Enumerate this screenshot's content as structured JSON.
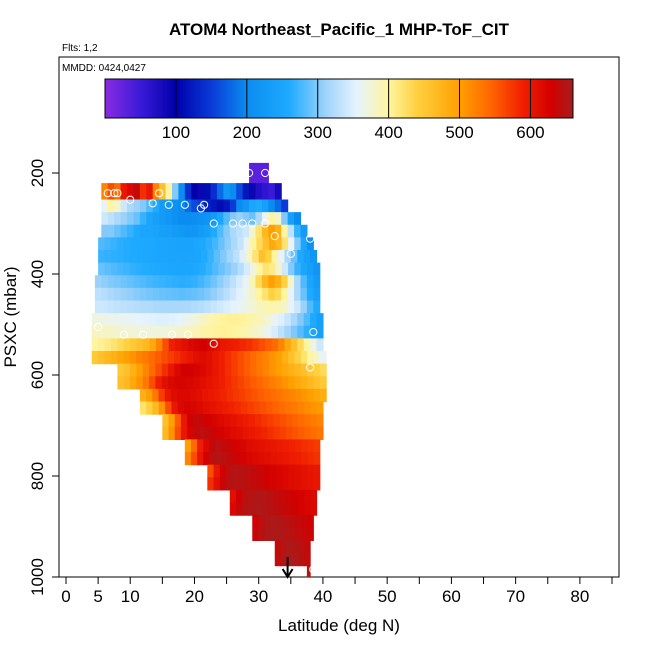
{
  "chart_data": {
    "type": "heatmap",
    "title": "ATOM4 Northeast_Pacific_1 MHP-ToF_CIT",
    "flights_label": "Flts: 1,2",
    "dates_label": "MMDD: 0424,0427",
    "xlabel": "Latitude (deg N)",
    "ylabel": "PSXC (mbar)",
    "xlim": [
      0,
      85
    ],
    "ylim": [
      1000,
      0
    ],
    "x_ticks_major": [
      0,
      10,
      20,
      30,
      40,
      50,
      60,
      70,
      80
    ],
    "x_tick_labels_major": [
      "0",
      "10",
      "20",
      "30",
      "40",
      "50",
      "60",
      "70",
      "80"
    ],
    "x_ticks_minor": [
      5,
      15,
      25,
      35,
      45,
      55,
      65,
      75,
      85
    ],
    "x_tick_labels_minor": [
      "5",
      "",
      "",
      "",
      "",
      "",
      "",
      "",
      ""
    ],
    "y_ticks": [
      200,
      400,
      600,
      800,
      1000
    ],
    "y_tick_labels": [
      "200",
      "400",
      "600",
      "800",
      "1000"
    ],
    "colorbar": {
      "min": 0,
      "max": 660,
      "ticks": [
        100,
        200,
        300,
        400,
        500,
        600
      ],
      "tick_labels": [
        "100",
        "200",
        "300",
        "400",
        "500",
        "600"
      ],
      "stops": [
        {
          "v": 0,
          "c": "#8a2be2"
        },
        {
          "v": 50,
          "c": "#3a1ad8"
        },
        {
          "v": 100,
          "c": "#0000aa"
        },
        {
          "v": 150,
          "c": "#0a3ad8"
        },
        {
          "v": 200,
          "c": "#0a8cf0"
        },
        {
          "v": 260,
          "c": "#1eaaff"
        },
        {
          "v": 310,
          "c": "#9cd2fa"
        },
        {
          "v": 355,
          "c": "#e6f3ff"
        },
        {
          "v": 400,
          "c": "#fff5a0"
        },
        {
          "v": 440,
          "c": "#ffd040"
        },
        {
          "v": 500,
          "c": "#ffa000"
        },
        {
          "v": 545,
          "c": "#ff6400"
        },
        {
          "v": 590,
          "c": "#f01e00"
        },
        {
          "v": 630,
          "c": "#d20000"
        },
        {
          "v": 660,
          "c": "#a51e1e"
        }
      ]
    },
    "layers": [
      {
        "p": 200,
        "lat_min": 28.5,
        "lat_max": 31.5,
        "values": [
          30,
          30,
          30
        ]
      },
      {
        "p": 240,
        "lat_min": 5.5,
        "lat_max": 33.5,
        "values": [
          520,
          560,
          540,
          600,
          620,
          640,
          580,
          600,
          520,
          460,
          400,
          300,
          200,
          140,
          100,
          90,
          110,
          140,
          180,
          220,
          200,
          160,
          120,
          90,
          70,
          60,
          50,
          80
        ]
      },
      {
        "p": 265,
        "lat_min": 5.5,
        "lat_max": 34.5,
        "values": [
          360,
          400,
          380,
          340,
          320,
          310,
          300,
          280,
          260,
          230,
          220,
          210,
          200,
          180,
          160,
          150,
          130,
          120,
          110,
          120,
          150,
          200,
          220,
          250,
          260,
          240,
          200,
          180,
          150
        ]
      },
      {
        "p": 290,
        "lat_min": 5.5,
        "lat_max": 36.5,
        "values": [
          340,
          330,
          320,
          310,
          300,
          290,
          270,
          250,
          240,
          230,
          220,
          210,
          200,
          200,
          205,
          210,
          215,
          230,
          250,
          280,
          300,
          310,
          300,
          290,
          320,
          360,
          400,
          380,
          300,
          240,
          200
        ]
      },
      {
        "p": 315,
        "lat_min": 5.5,
        "lat_max": 37.5,
        "values": [
          300,
          300,
          290,
          280,
          270,
          260,
          250,
          250,
          245,
          240,
          235,
          230,
          225,
          220,
          220,
          230,
          240,
          260,
          280,
          300,
          320,
          330,
          340,
          380,
          420,
          470,
          500,
          480,
          400,
          330,
          270,
          230
        ]
      },
      {
        "p": 340,
        "lat_min": 5.0,
        "lat_max": 38.5,
        "values": [
          280,
          275,
          270,
          265,
          262,
          260,
          258,
          256,
          255,
          252,
          250,
          248,
          246,
          245,
          246,
          250,
          256,
          265,
          275,
          290,
          305,
          320,
          335,
          360,
          400,
          430,
          460,
          490,
          470,
          420,
          360,
          300,
          250,
          210
        ]
      },
      {
        "p": 365,
        "lat_min": 5.0,
        "lat_max": 39.0,
        "values": [
          270,
          268,
          266,
          264,
          262,
          260,
          258,
          256,
          254,
          252,
          250,
          248,
          247,
          246,
          248,
          252,
          260,
          270,
          285,
          300,
          315,
          330,
          350,
          380,
          420,
          460,
          440,
          400,
          360,
          320,
          290,
          260,
          240,
          220
        ]
      },
      {
        "p": 390,
        "lat_min": 5.0,
        "lat_max": 39.5,
        "values": [
          290,
          285,
          280,
          276,
          272,
          268,
          265,
          262,
          260,
          258,
          256,
          254,
          252,
          250,
          252,
          256,
          262,
          270,
          280,
          290,
          300,
          310,
          325,
          345,
          370,
          400,
          420,
          410,
          380,
          340,
          300,
          270,
          250,
          235,
          220
        ]
      },
      {
        "p": 415,
        "lat_min": 4.5,
        "lat_max": 39.5,
        "values": [
          310,
          305,
          300,
          296,
          292,
          288,
          284,
          280,
          276,
          272,
          270,
          268,
          266,
          264,
          265,
          268,
          274,
          282,
          292,
          304,
          316,
          330,
          345,
          360,
          390,
          430,
          470,
          500,
          480,
          440,
          380,
          320,
          280,
          250,
          230
        ]
      },
      {
        "p": 440,
        "lat_min": 4.5,
        "lat_max": 39.5,
        "values": [
          330,
          325,
          320,
          315,
          310,
          306,
          302,
          298,
          295,
          292,
          290,
          288,
          286,
          285,
          286,
          288,
          292,
          298,
          306,
          316,
          328,
          340,
          352,
          365,
          380,
          400,
          420,
          440,
          430,
          400,
          360,
          320,
          290,
          260,
          240
        ]
      },
      {
        "p": 465,
        "lat_min": 4.5,
        "lat_max": 39.5,
        "values": [
          340,
          338,
          335,
          332,
          330,
          328,
          326,
          324,
          322,
          320,
          318,
          318,
          318,
          318,
          320,
          322,
          326,
          330,
          336,
          342,
          348,
          354,
          360,
          368,
          376,
          384,
          390,
          394,
          390,
          380,
          360,
          340,
          310,
          280,
          260
        ]
      },
      {
        "p": 490,
        "lat_min": 4.0,
        "lat_max": 40.0,
        "values": [
          370,
          368,
          366,
          364,
          362,
          360,
          358,
          356,
          354,
          352,
          350,
          350,
          352,
          356,
          362,
          368,
          376,
          384,
          392,
          398,
          402,
          404,
          404,
          402,
          398,
          392,
          384,
          374,
          362,
          350,
          336,
          320,
          300,
          280,
          260,
          240
        ]
      },
      {
        "p": 515,
        "lat_min": 4.0,
        "lat_max": 40.0,
        "values": [
          385,
          383,
          381,
          379,
          377,
          375,
          374,
          373,
          372,
          372,
          372,
          373,
          375,
          378,
          382,
          387,
          392,
          397,
          400,
          402,
          403,
          402,
          400,
          396,
          390,
          382,
          372,
          360,
          346,
          330,
          314,
          298,
          282,
          266,
          250,
          240
        ]
      },
      {
        "p": 540,
        "lat_min": 4.0,
        "lat_max": 40.0,
        "values": [
          400,
          405,
          412,
          420,
          430,
          440,
          450,
          460,
          470,
          490,
          520,
          560,
          590,
          600,
          610,
          620,
          625,
          630,
          620,
          610,
          600,
          595,
          590,
          585,
          580,
          570,
          560,
          550,
          540,
          520,
          490,
          460,
          430,
          400,
          370,
          340
        ]
      },
      {
        "p": 565,
        "lat_min": 4.0,
        "lat_max": 40.5,
        "values": [
          450,
          460,
          470,
          480,
          490,
          500,
          510,
          520,
          530,
          540,
          550,
          560,
          570,
          580,
          590,
          600,
          610,
          615,
          610,
          600,
          590,
          580,
          570,
          560,
          550,
          540,
          530,
          520,
          510,
          500,
          480,
          460,
          440,
          420,
          400,
          380,
          360
        ]
      },
      {
        "p": 590,
        "lat_min": 8.0,
        "lat_max": 40.5,
        "values": [
          450,
          460,
          480,
          500,
          520,
          540,
          560,
          580,
          600,
          620,
          630,
          630,
          625,
          620,
          610,
          600,
          590,
          580,
          570,
          560,
          550,
          540,
          530,
          520,
          510,
          500,
          490,
          480,
          470,
          460,
          450,
          440,
          430
        ]
      },
      {
        "p": 615,
        "lat_min": 8.0,
        "lat_max": 40.5,
        "values": [
          460,
          470,
          490,
          510,
          530,
          560,
          590,
          610,
          620,
          625,
          625,
          622,
          618,
          612,
          605,
          598,
          590,
          582,
          574,
          566,
          558,
          550,
          542,
          534,
          526,
          518,
          510,
          500,
          490,
          480,
          470,
          460,
          450
        ]
      },
      {
        "p": 640,
        "lat_min": 11.5,
        "lat_max": 40.5,
        "values": [
          480,
          500,
          530,
          570,
          600,
          615,
          620,
          620,
          616,
          610,
          604,
          598,
          592,
          586,
          580,
          574,
          568,
          562,
          556,
          550,
          544,
          538,
          532,
          526,
          520,
          514,
          508,
          500,
          492,
          484
        ]
      },
      {
        "p": 665,
        "lat_min": 11.5,
        "lat_max": 40.0,
        "values": [
          420,
          440,
          470,
          510,
          560,
          600,
          620,
          625,
          622,
          618,
          612,
          606,
          600,
          594,
          588,
          582,
          576,
          570,
          564,
          558,
          552,
          546,
          540,
          534,
          528,
          522,
          516,
          510,
          504
        ]
      },
      {
        "p": 690,
        "lat_min": 15.0,
        "lat_max": 40.0,
        "values": [
          460,
          500,
          550,
          600,
          630,
          640,
          635,
          630,
          624,
          618,
          612,
          606,
          600,
          594,
          588,
          582,
          576,
          570,
          564,
          558,
          552,
          546,
          540,
          534,
          528,
          522
        ]
      },
      {
        "p": 715,
        "lat_min": 15.0,
        "lat_max": 40.0,
        "values": [
          470,
          510,
          560,
          600,
          625,
          640,
          645,
          640,
          634,
          628,
          622,
          616,
          610,
          604,
          598,
          592,
          586,
          580,
          574,
          568,
          562,
          556,
          550,
          544,
          538,
          532
        ]
      },
      {
        "p": 740,
        "lat_min": 18.5,
        "lat_max": 39.5,
        "values": [
          500,
          540,
          590,
          620,
          640,
          645,
          640,
          634,
          628,
          622,
          616,
          612,
          608,
          604,
          600,
          596,
          592,
          588,
          584,
          580,
          576,
          572
        ]
      },
      {
        "p": 765,
        "lat_min": 18.5,
        "lat_max": 39.5,
        "values": [
          520,
          560,
          600,
          630,
          645,
          650,
          646,
          640,
          634,
          628,
          622,
          618,
          614,
          610,
          606,
          602,
          598,
          594,
          590,
          586,
          582,
          578
        ]
      },
      {
        "p": 790,
        "lat_min": 22.0,
        "lat_max": 39.5,
        "values": [
          560,
          600,
          630,
          645,
          650,
          648,
          644,
          640,
          636,
          632,
          628,
          624,
          620,
          616,
          612,
          608,
          604,
          600
        ]
      },
      {
        "p": 815,
        "lat_min": 22.0,
        "lat_max": 39.5,
        "values": [
          580,
          610,
          635,
          648,
          650,
          648,
          644,
          640,
          636,
          632,
          628,
          624,
          620,
          616,
          612,
          608,
          604,
          600
        ]
      },
      {
        "p": 840,
        "lat_min": 25.5,
        "lat_max": 39.0,
        "values": [
          610,
          630,
          645,
          650,
          652,
          650,
          646,
          642,
          638,
          634,
          630,
          626,
          622,
          618
        ]
      },
      {
        "p": 865,
        "lat_min": 25.5,
        "lat_max": 39.0,
        "values": [
          620,
          638,
          648,
          652,
          654,
          652,
          648,
          644,
          640,
          636,
          632,
          628,
          624,
          620
        ]
      },
      {
        "p": 890,
        "lat_min": 29.0,
        "lat_max": 38.5,
        "values": [
          630,
          645,
          652,
          655,
          652,
          648,
          644,
          640,
          636,
          632
        ]
      },
      {
        "p": 915,
        "lat_min": 29.0,
        "lat_max": 38.5,
        "values": [
          636,
          648,
          654,
          656,
          654,
          650,
          646,
          642,
          638,
          634
        ]
      },
      {
        "p": 940,
        "lat_min": 32.5,
        "lat_max": 38.0,
        "values": [
          640,
          650,
          655,
          652,
          646,
          640
        ]
      },
      {
        "p": 965,
        "lat_min": 32.5,
        "lat_max": 38.0,
        "values": [
          642,
          652,
          656,
          654,
          648,
          642
        ]
      },
      {
        "p": 990,
        "lat_min": 37.5,
        "lat_max": 38.0,
        "values": [
          650
        ]
      }
    ],
    "samples": [
      {
        "lat": 28.5,
        "p": 200
      },
      {
        "lat": 31.0,
        "p": 200
      },
      {
        "lat": 6.5,
        "p": 240
      },
      {
        "lat": 7.5,
        "p": 240
      },
      {
        "lat": 8.0,
        "p": 240
      },
      {
        "lat": 14.5,
        "p": 240
      },
      {
        "lat": 10.0,
        "p": 253
      },
      {
        "lat": 13.5,
        "p": 260
      },
      {
        "lat": 16.0,
        "p": 263
      },
      {
        "lat": 18.5,
        "p": 263
      },
      {
        "lat": 21.5,
        "p": 263
      },
      {
        "lat": 21.0,
        "p": 270
      },
      {
        "lat": 23.0,
        "p": 300
      },
      {
        "lat": 26.0,
        "p": 300
      },
      {
        "lat": 27.5,
        "p": 300
      },
      {
        "lat": 29.0,
        "p": 300
      },
      {
        "lat": 31.0,
        "p": 300
      },
      {
        "lat": 32.5,
        "p": 325
      },
      {
        "lat": 38.0,
        "p": 330
      },
      {
        "lat": 39.5,
        "p": 330
      },
      {
        "lat": 35.0,
        "p": 360
      },
      {
        "lat": 5.0,
        "p": 505
      },
      {
        "lat": 38.5,
        "p": 515
      },
      {
        "lat": 9.0,
        "p": 520
      },
      {
        "lat": 12.0,
        "p": 520
      },
      {
        "lat": 16.5,
        "p": 520
      },
      {
        "lat": 19.0,
        "p": 520
      },
      {
        "lat": 23.0,
        "p": 538
      },
      {
        "lat": 38.0,
        "p": 585
      },
      {
        "lat": 38.5,
        "p": 985
      }
    ],
    "arrow_latitude": 34.5
  }
}
